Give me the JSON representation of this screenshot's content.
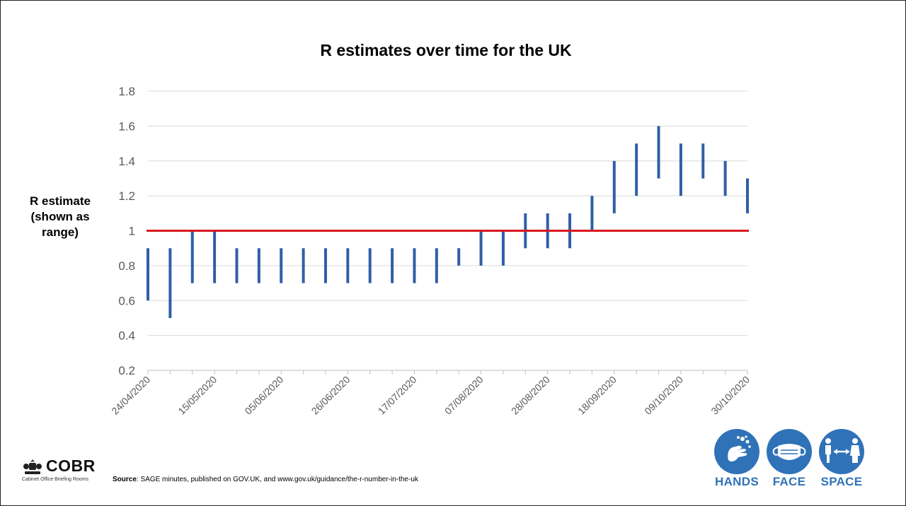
{
  "chart_data": {
    "type": "range",
    "title": "R estimates over time for the UK",
    "ylabel": [
      "R estimate",
      "(shown as",
      "range)"
    ],
    "ylim": [
      0.2,
      1.8
    ],
    "yticks": [
      0.2,
      0.4,
      0.6,
      0.8,
      1.0
    ],
    "ytick_labels": [
      "0.2",
      "0.4",
      "0.6",
      "0.8",
      "1"
    ],
    "yticks_upper": [
      1.2,
      1.4,
      1.6,
      1.8
    ],
    "ytick_labels_upper": [
      "1.2",
      "1.4",
      "1.6",
      "1.8"
    ],
    "xtick_labels": [
      "24/04/2020",
      "15/05/2020",
      "05/06/2020",
      "26/06/2020",
      "17/07/2020",
      "07/08/2020",
      "28/08/2020",
      "18/09/2020",
      "09/10/2020",
      "30/10/2020"
    ],
    "reference_line": 1.0,
    "reference_color": "#d9181e",
    "series_color": "#2f5fa7",
    "ranges": [
      [
        0.6,
        0.9
      ],
      [
        0.5,
        0.9
      ],
      [
        0.7,
        1.0
      ],
      [
        0.7,
        1.0
      ],
      [
        0.7,
        0.9
      ],
      [
        0.7,
        0.9
      ],
      [
        0.7,
        0.9
      ],
      [
        0.7,
        0.9
      ],
      [
        0.7,
        0.9
      ],
      [
        0.7,
        0.9
      ],
      [
        0.7,
        0.9
      ],
      [
        0.7,
        0.9
      ],
      [
        0.7,
        0.9
      ],
      [
        0.7,
        0.9
      ],
      [
        0.8,
        0.9
      ],
      [
        0.8,
        1.0
      ],
      [
        0.8,
        1.0
      ],
      [
        0.9,
        1.1
      ],
      [
        0.9,
        1.1
      ],
      [
        0.9,
        1.1
      ],
      [
        1.0,
        1.2
      ],
      [
        1.1,
        1.4
      ],
      [
        1.2,
        1.5
      ],
      [
        1.3,
        1.6
      ],
      [
        1.2,
        1.5
      ],
      [
        1.3,
        1.5
      ],
      [
        1.2,
        1.4
      ],
      [
        1.1,
        1.3
      ]
    ]
  },
  "logo": {
    "name": "COBR",
    "subtitle": "Cabinet Office Briefing Rooms"
  },
  "source": {
    "label": "Source",
    "text": ": SAGE minutes, published on GOV.UK, and www.gov.uk/guidance/the-r-number-in-the-uk"
  },
  "badges": [
    {
      "label": "HANDS",
      "icon": "hands-washing-icon"
    },
    {
      "label": "FACE",
      "icon": "face-mask-icon"
    },
    {
      "label": "SPACE",
      "icon": "social-distance-icon"
    }
  ],
  "colors": {
    "badge": "#2f72b8",
    "grid": "#d9d9d9"
  }
}
